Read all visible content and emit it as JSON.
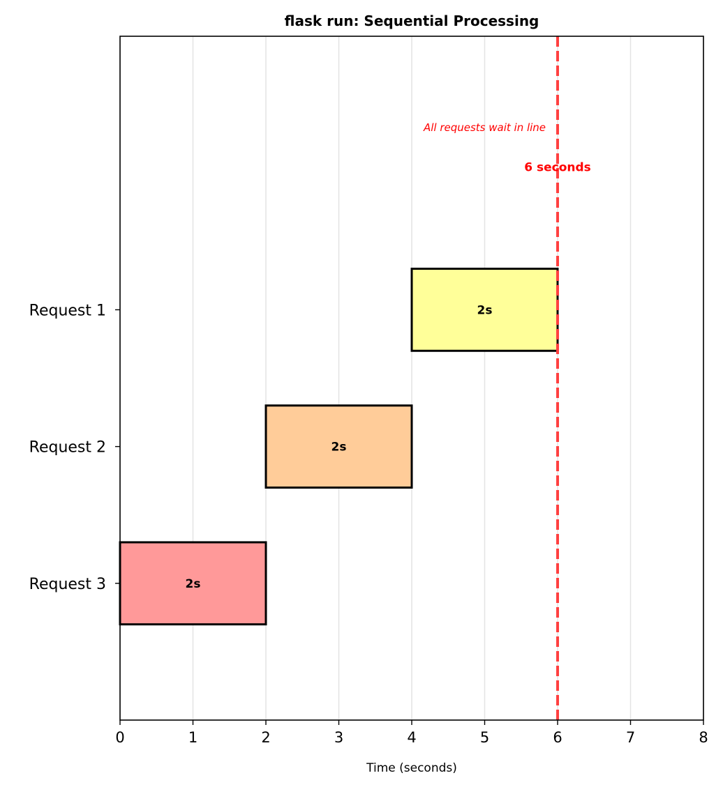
{
  "chart_data": {
    "type": "bar",
    "orientation": "horizontal",
    "title": "flask run: Sequential Processing",
    "xlabel": "Time (seconds)",
    "ylabel": "",
    "xlim": [
      0,
      8
    ],
    "ylim": [
      -1,
      4
    ],
    "xticks": [
      0,
      1,
      2,
      3,
      4,
      5,
      6,
      7,
      8
    ],
    "grid": "vertical",
    "categories": [
      "Request 3",
      "Request 2",
      "Request 1"
    ],
    "bars": [
      {
        "category": "Request 1",
        "y": 2,
        "start": 4,
        "duration": 2,
        "label": "2s",
        "color": "#ffff99"
      },
      {
        "category": "Request 2",
        "y": 1,
        "start": 2,
        "duration": 2,
        "label": "2s",
        "color": "#ffcc99"
      },
      {
        "category": "Request 3",
        "y": 0,
        "start": 0,
        "duration": 2,
        "label": "2s",
        "color": "#ff9999"
      }
    ],
    "bar_height": 0.6,
    "vline": {
      "x": 6,
      "color": "#ff4040",
      "style": "dashed"
    },
    "annotations": [
      {
        "text": "All requests wait in line",
        "x": 5,
        "y": 3.33,
        "color": "#ff0000",
        "style": "italic"
      },
      {
        "text": "6 seconds",
        "x": 6,
        "y": 3.04,
        "color": "#ff0000",
        "style": "bold"
      }
    ]
  }
}
